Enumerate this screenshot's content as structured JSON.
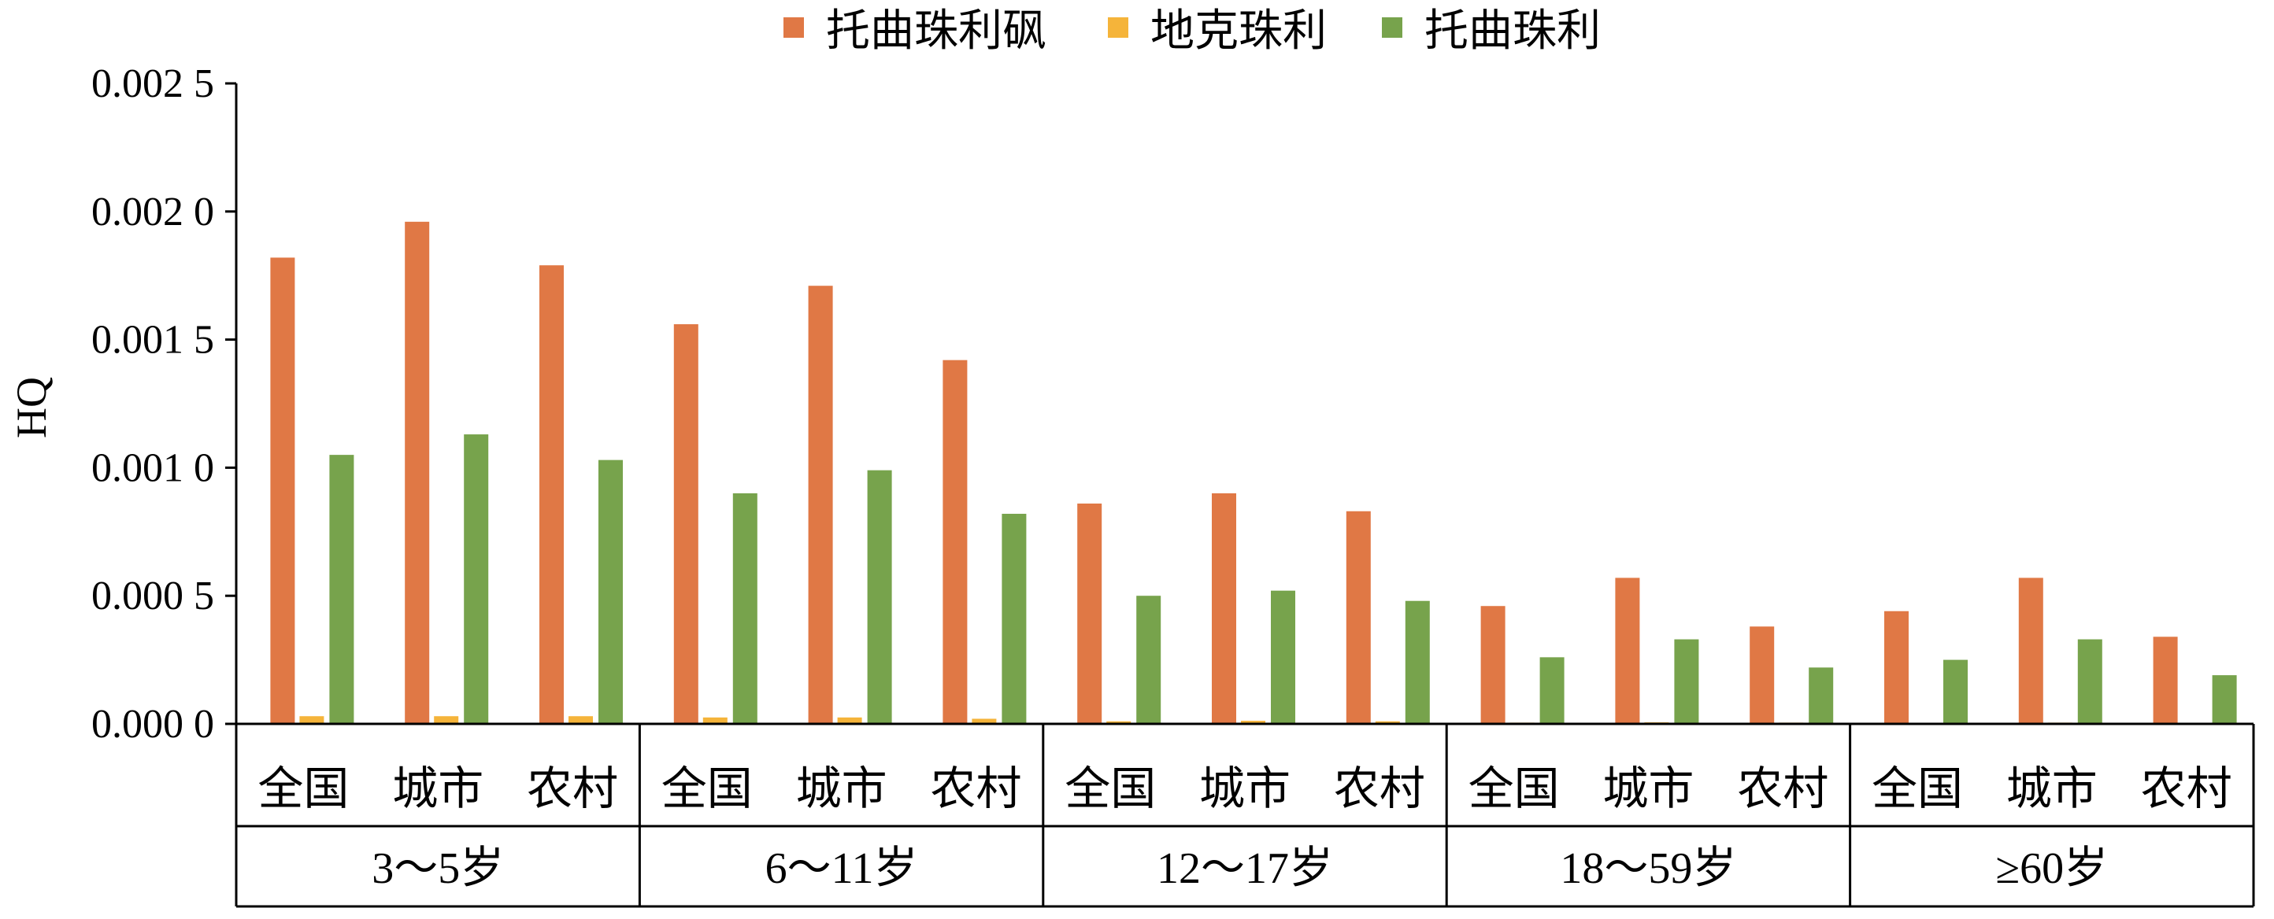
{
  "chart_data": {
    "type": "bar",
    "title": "",
    "xlabel": "",
    "ylabel": "HQ",
    "ylim": [
      0,
      0.0025
    ],
    "yticks": [
      "0.000 0",
      "0.000 5",
      "0.001 0",
      "0.001 5",
      "0.002 0",
      "0.002 5"
    ],
    "ytick_values": [
      0,
      0.0005,
      0.001,
      0.0015,
      0.002,
      0.0025
    ],
    "groups": [
      {
        "label": "3～5岁",
        "categories": [
          "全国",
          "城市",
          "农村"
        ]
      },
      {
        "label": "6～11岁",
        "categories": [
          "全国",
          "城市",
          "农村"
        ]
      },
      {
        "label": "12～17岁",
        "categories": [
          "全国",
          "城市",
          "农村"
        ]
      },
      {
        "label": "18～59岁",
        "categories": [
          "全国",
          "城市",
          "农村"
        ]
      },
      {
        "label": "≥60岁",
        "categories": [
          "全国",
          "城市",
          "农村"
        ]
      }
    ],
    "series": [
      {
        "name": "托曲珠利砜",
        "color": "#E07845",
        "values": [
          0.00182,
          0.00196,
          0.00179,
          0.00156,
          0.00171,
          0.00142,
          0.00086,
          0.0009,
          0.00083,
          0.00046,
          0.00057,
          0.00038,
          0.00044,
          0.00057,
          0.00034
        ]
      },
      {
        "name": "地克珠利",
        "color": "#F5B43A",
        "values": [
          3e-05,
          3e-05,
          3e-05,
          2.5e-05,
          2.5e-05,
          2e-05,
          1e-05,
          1.2e-05,
          1e-05,
          5e-06,
          6e-06,
          5e-06,
          4e-06,
          5e-06,
          4e-06
        ]
      },
      {
        "name": "托曲珠利",
        "color": "#77A34C",
        "values": [
          0.00105,
          0.00113,
          0.00103,
          0.0009,
          0.00099,
          0.00082,
          0.0005,
          0.00052,
          0.00048,
          0.00026,
          0.00033,
          0.00022,
          0.00025,
          0.00033,
          0.00019
        ]
      }
    ],
    "legend_position": "top-center",
    "grid": false
  }
}
